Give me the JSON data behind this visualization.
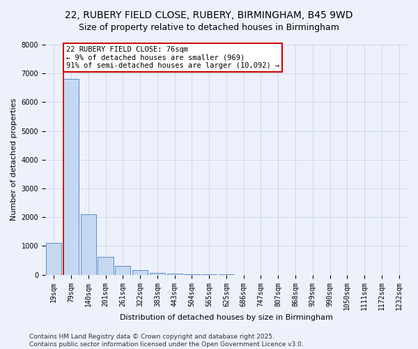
{
  "title_line1": "22, RUBERY FIELD CLOSE, RUBERY, BIRMINGHAM, B45 9WD",
  "title_line2": "Size of property relative to detached houses in Birmingham",
  "xlabel": "Distribution of detached houses by size in Birmingham",
  "ylabel": "Number of detached properties",
  "categories": [
    "19sqm",
    "79sqm",
    "140sqm",
    "201sqm",
    "261sqm",
    "322sqm",
    "383sqm",
    "443sqm",
    "504sqm",
    "565sqm",
    "625sqm",
    "686sqm",
    "747sqm",
    "807sqm",
    "868sqm",
    "929sqm",
    "990sqm",
    "1050sqm",
    "1111sqm",
    "1172sqm",
    "1232sqm"
  ],
  "values": [
    1100,
    6800,
    2100,
    620,
    300,
    150,
    70,
    35,
    15,
    8,
    3,
    1,
    0,
    0,
    0,
    0,
    0,
    0,
    0,
    0,
    0
  ],
  "bar_color": "#c5d8f0",
  "bar_edge_color": "#5b8cc8",
  "annotation_text": "22 RUBERY FIELD CLOSE: 76sqm\n← 9% of detached houses are smaller (969)\n91% of semi-detached houses are larger (10,092) →",
  "annotation_box_color": "#ffffff",
  "annotation_box_edge": "#cc0000",
  "vline_color": "#cc0000",
  "ylim": [
    0,
    8000
  ],
  "yticks": [
    0,
    1000,
    2000,
    3000,
    4000,
    5000,
    6000,
    7000,
    8000
  ],
  "grid_color": "#c8d4e8",
  "background_color": "#edf1fb",
  "footer_line1": "Contains HM Land Registry data © Crown copyright and database right 2025.",
  "footer_line2": "Contains public sector information licensed under the Open Government Licence v3.0.",
  "title_fontsize": 10,
  "axis_label_fontsize": 8,
  "tick_fontsize": 7,
  "annotation_fontsize": 7.5,
  "footer_fontsize": 6.5
}
